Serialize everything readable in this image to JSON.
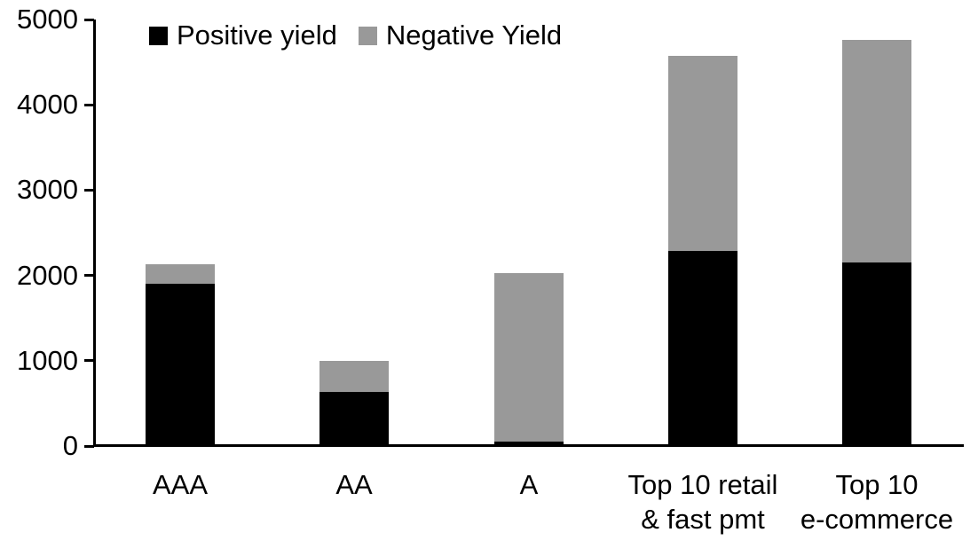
{
  "chart_data": {
    "type": "bar",
    "stacked": true,
    "title": "",
    "categories": [
      "AAA",
      "AA",
      "A",
      "Top 10 retail\n& fast pmt",
      "Top 10\ne-commerce"
    ],
    "series": [
      {
        "name": "Positive yield",
        "color": "#000000",
        "values": [
          1900,
          630,
          50,
          2290,
          2150
        ]
      },
      {
        "name": "Negative Yield",
        "color": "#999999",
        "values": [
          230,
          370,
          1980,
          2280,
          2610
        ]
      }
    ],
    "totals": [
      2130,
      1000,
      2030,
      4570,
      4760
    ],
    "ylim": [
      0,
      5000
    ],
    "yticks": [
      0,
      1000,
      2000,
      3000,
      4000,
      5000
    ],
    "ytick_labels": [
      "0",
      "1000",
      "2000",
      "3000",
      "4000",
      "5000"
    ],
    "xlabel": "",
    "ylabel": "",
    "grid": false,
    "legend_position": "top",
    "axis_color": "#000000",
    "background_color": "#ffffff"
  }
}
